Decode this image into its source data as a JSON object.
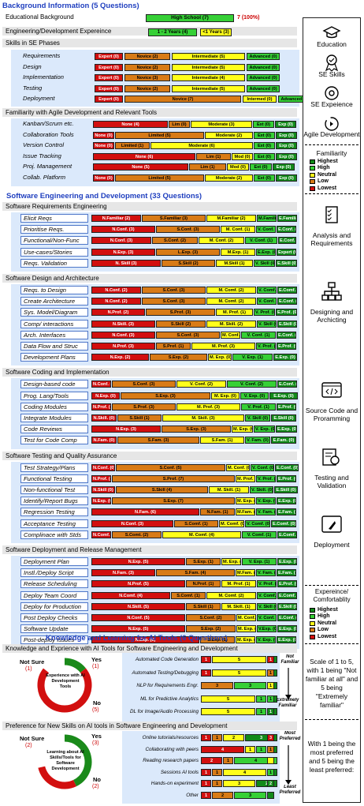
{
  "colors": {
    "highest": "#128a1a",
    "high": "#36d036",
    "neutral": "#ffff1a",
    "low": "#d87b17",
    "lowest": "#d20f0f",
    "title": "#1f3fbf"
  },
  "s1": {
    "title": "Background Information (5 Questions)",
    "edu": {
      "label": "Educational Background",
      "value": "High School (7)",
      "pct": "7 (100%)"
    },
    "exp": {
      "label": "Engineering/Development Expereince",
      "a": "1 - 2 Years (4)",
      "b": "<1 Years (3)"
    },
    "skills_title": "Skills in SE Phases",
    "skills": [
      {
        "l": "Requirements",
        "b": [
          "Expert (0)",
          "Novice (2)",
          "Intermediate (5)",
          "Advanced (0)"
        ]
      },
      {
        "l": "Design",
        "b": [
          "Expert (0)",
          "Novice (2)",
          "Intermediate (5)",
          "Advanced (0)"
        ]
      },
      {
        "l": "Implementation",
        "b": [
          "Expert (0)",
          "Novice (3)",
          "Intermediate (4)",
          "Advanced (0)"
        ]
      },
      {
        "l": "Testing",
        "b": [
          "Expert (0)",
          "Novice (2)",
          "Intermediate (5)",
          "Advanced (0)"
        ]
      },
      {
        "l": "Deployment",
        "b": [
          "Expert (0)",
          "Novice (7)",
          "Intermed (0)",
          "Advanced (0)"
        ]
      }
    ],
    "fam_title": "Familiarity with Agile Development and Relevant Tools",
    "fam": [
      {
        "l": "Kanban/Scrum etc.",
        "b": [
          "None (4)",
          "Lim (0)",
          "Moderate (3)",
          "Ext (0)",
          "Exp (0)"
        ]
      },
      {
        "l": "Collaboration Tools",
        "b": [
          "None (0)",
          "Limited (5)",
          "Moderate (2)",
          "Ext (0)",
          "Exp (0)"
        ]
      },
      {
        "l": "Version Control",
        "b": [
          "None (0)",
          "Limited (1)",
          "Moderate (6)",
          "Ext (0)",
          "Exp (0)"
        ]
      },
      {
        "l": "Issue Tracking",
        "b": [
          "None (6)",
          "Lim (1)",
          "Mod (0)",
          "Ext (0)",
          "Exp (0)"
        ]
      },
      {
        "l": "Proj. Management",
        "b": [
          "None (5)",
          "Lim (1)",
          "Mod (0)",
          "Ext (0)",
          "Exp (0)"
        ]
      },
      {
        "l": "Collab. Platform",
        "b": [
          "None (0)",
          "Limited (5)",
          "Moderate (2)",
          "Ext (0)",
          "Exp (0)"
        ]
      }
    ]
  },
  "s2": {
    "title": "Software Engineering and Development (33 Questions)",
    "groups": [
      {
        "title": "Software Requirements Engineering",
        "rows": [
          {
            "l": "Elicit Reqs",
            "b": [
              "N.Familiar (2)",
              "S.Familiar (3)",
              "M.Familiar (2)",
              "M.Familiar (0)",
              "E.Familiar (0)"
            ]
          },
          {
            "l": "Prioritise Reqs.",
            "b": [
              "N.Conf. (3)",
              "S.Conf. (3)",
              "M. Conf. (1)",
              "V. Conf. (0)",
              "E.Conf. (0)"
            ]
          },
          {
            "l": "Functional/Non-Func",
            "b": [
              "N.Conf. (3)",
              "S.Conf. (2)",
              "M. Conf. (2)",
              "V. Conf. (1)",
              "E.Conf. (0)"
            ]
          },
          {
            "l": "Use-cases/Stories",
            "b": [
              "N.Exp. (3)",
              "L.Exp. (3)",
              "M.Exp. (1)",
              "E.Exp. (0)",
              "Expert (0)"
            ]
          },
          {
            "l": "Reqs. Validation",
            "b": [
              "N. Skill (3)",
              "S.Skill (2)",
              "M.Skill (1)",
              "V. Skill (0)",
              "E.Skill (0)"
            ]
          }
        ]
      },
      {
        "title": "Software Design and Architecture",
        "rows": [
          {
            "l": "Reqs. to Design",
            "b": [
              "N.Conf. (2)",
              "S.Conf. (3)",
              "M. Comf. (2)",
              "V. Comf. (0)",
              "E.Comf. (0)"
            ]
          },
          {
            "l": "Create Architecture",
            "b": [
              "N.Conf. (2)",
              "S.Conf. (3)",
              "M. Comf. (2)",
              "V. Conf. (0)",
              "E.Conf. (0)"
            ]
          },
          {
            "l": "Sys. Model/Diagram",
            "b": [
              "N.Prof. (2)",
              "S.Prof. (3)",
              "M. Prof. (1)",
              "V. Prof. (0)",
              "E.Prof. (0)"
            ]
          },
          {
            "l": "Comp/ interactions",
            "b": [
              "N.Skill. (3)",
              "S.Skill (2)",
              "M. Skill. (2)",
              "V. Skill (0)",
              "E.Skill (0)"
            ]
          },
          {
            "l": "Arch. Interfaces",
            "b": [
              "N.Conf. (3)",
              "S.Conf. (3)",
              "M. Conf. (0)",
              "V. Conf. (1)",
              "E.Conf. (0)"
            ]
          },
          {
            "l": "Data Flow and Struc",
            "b": [
              "N.Prof. (3)",
              "S.Prof. (1)",
              "M. Prof. (3)",
              "V. Prof. (0)",
              "E.Prof. (0)"
            ]
          },
          {
            "l": "Development Plans",
            "b": [
              "N.Exp. (2)",
              "S.Exp. (2)",
              "M. Exp. (0)",
              "V. Exp. (1)",
              "E.Exp. (0)"
            ]
          }
        ]
      },
      {
        "title": "Software Coding and Implementation",
        "rows": [
          {
            "l": "Design-based code",
            "b": [
              "N.Conf. (0)",
              "S.Conf. (3)",
              "V. Conf. (2)",
              "V. Conf. (2)",
              "E.Conf. (0)"
            ]
          },
          {
            "l": "Prog. Lang/Tools",
            "b": [
              "N.Exp. (0)",
              "S.Exp. (3)",
              "M. Exp. (0)",
              "V. Exp. (0)",
              "E.Exp. (0)"
            ]
          },
          {
            "l": "Coding Modules",
            "b": [
              "N.Prof. (0)",
              "S.Prof. (3)",
              "M. Prof. (3)",
              "V. Prof. (1)",
              "E.Prof. (0)"
            ]
          },
          {
            "l": "Integrate Modules",
            "b": [
              "N.Skill. (0)",
              "S.Skill (1)",
              "M. Skill. (3)",
              "V. Skill (0)",
              "E.Skill (0)"
            ]
          },
          {
            "l": "Code Reviews",
            "b": [
              "N.Exp. (3)",
              "S.Exp. (3)",
              "M. Exp. (0)",
              "V. Exp. (0)",
              "E.Exp. (0)"
            ]
          },
          {
            "l": "Test for Code Comp",
            "b": [
              "N.Fam. (0)",
              "S.Fam. (3)",
              "S.Fam. (1)",
              "V. Fam. (0)",
              "E.Fam. (0)"
            ]
          }
        ]
      },
      {
        "title": "Software Testing and Quality Assurance",
        "rows": [
          {
            "l": "Test Strategy/Plans",
            "b": [
              "N.Conf. (0)",
              "S.Conf. (5)",
              "M. Conf. (0)",
              "V. Conf. (0)",
              "E.Conf. (0)"
            ]
          },
          {
            "l": "Functional Testing",
            "b": [
              "N.Prof. (0)",
              "S.Prof. (7)",
              "M. Prof. (0)",
              "V. Prof. (0)",
              "E.Prof. (0)"
            ]
          },
          {
            "l": "Non-functional Test",
            "b": [
              "N.Skill (0)",
              "S.Skill (4)",
              "M. Skill. (1)",
              "V. Skill. (0)",
              "E.Skill (0)"
            ]
          },
          {
            "l": "Identify/Report Bugs",
            "b": [
              "N.Exp. (0)",
              "S.Exp. (7)",
              "M. Exp. (0)",
              "V. Exp. (0)",
              "E.Exp. (0)"
            ]
          },
          {
            "l": "Regression Testing",
            "b": [
              "N.Fam. (6)",
              "N.Fam. (1)",
              "M.Fam. (0)",
              "V. Fam. (0)",
              "E.Fam. (0)"
            ]
          },
          {
            "l": "Acceptance Testing",
            "b": [
              "N.Conf. (3)",
              "S.Comf. (1)",
              "M. Comf. (0)",
              "V. Comf. (0)",
              "E.Comf. (0)"
            ]
          },
          {
            "l": "Complinace with Stds",
            "b": [
              "N.Comf. (0)",
              "S.Comt. (2)",
              "M. Comf. (4)",
              "V. Comf. (1)",
              "E.Comf. (0)"
            ]
          }
        ]
      },
      {
        "title": "Software Deployment and Release Management",
        "rows": [
          {
            "l": "Deployment Plan",
            "b": [
              "N.Exp. (5)",
              "S.Exp. (1)",
              "M. Exp. (0)",
              "V. Exp. (1)",
              "E.Exp. (0)"
            ]
          },
          {
            "l": "Instl./Deploy Script",
            "b": [
              "N.Fam. (3)",
              "S.Fam. (4)",
              "M.Fam. (0)",
              "V. Fam. (0)",
              "E.Fam. (0)"
            ]
          },
          {
            "l": "Release Scheduling",
            "b": [
              "N.Prof. (5)",
              "N.Prof. (1)",
              "M. Prof. (1)",
              "V. Prof. (0)",
              "E.Prof. (0)"
            ]
          },
          {
            "l": "Deploy Team Coord",
            "b": [
              "N.Comf. (4)",
              "S.Comf. (1)",
              "M. Comf. (2)",
              "V. Comf. (0)",
              "E.Comf. (0)"
            ]
          },
          {
            "l": "Deploy for Production",
            "b": [
              "N.Skill. (5)",
              "S.Skill (1)",
              "M. Skill. (1)",
              "V. Skill (0)",
              "E.Skill (0)"
            ]
          },
          {
            "l": "Post Deploy Checks",
            "b": [
              "N.Conf. (5)",
              "S.Conf. (2)",
              "M. Conf. (0)",
              "V. Conf. (0)",
              "E.Conf. (0)"
            ]
          },
          {
            "l": "Software Update",
            "b": [
              "N.Exp. (5)",
              "S.Exp. (2)",
              "M. Exp. (0)",
              "V.Exp. (0)",
              "E.Exp. (0)"
            ]
          },
          {
            "l": "Post-deploy Issues",
            "b": [
              "N.Exp. (6)",
              "S.Exp. (1)",
              "M. Exp. (0)",
              "V. Exp. (0)",
              "E.Exp. (0)"
            ]
          }
        ]
      }
    ]
  },
  "s3": {
    "title": "Knowledge and Learning for AI Tools (6 Questions)",
    "k_title": "Knowledge and Exprience with AI Tools for Software Engineering and Development",
    "k_donut": {
      "center": "Experience with AI Development Tools",
      "notsure_label": "Not Sure",
      "notsure_val": "(1)",
      "yes_label": "Yes",
      "yes_val": "(1)",
      "no_label": "No",
      "no_val": "(5)"
    },
    "k_items": [
      {
        "l": "Automated Code Generation",
        "v": [
          "1",
          "",
          "5",
          "",
          "1"
        ]
      },
      {
        "l": "Automated Testing/Debugging",
        "v": [
          "1",
          "",
          "5",
          "",
          "1"
        ]
      },
      {
        "l": "NLP for Requirements Engr.",
        "v": [
          "",
          "3",
          "",
          "3",
          "1"
        ]
      },
      {
        "l": "ML for Predictive Analytics",
        "v": [
          "",
          "",
          "5",
          "1",
          "1"
        ]
      },
      {
        "l": "DL for Image/Audio Processing",
        "v": [
          "",
          "",
          "5",
          "1",
          "1"
        ]
      }
    ],
    "k_top": "Not Familiar",
    "k_bottom": "Extremely Familiar",
    "p_title": "Preference for New Skills on AI tools in Software Engineering and Development",
    "p_donut": {
      "center": "Learning about AI Skills/Tools for Software Development",
      "notsure_label": "Not Sure",
      "notsure_val": "(2)",
      "yes_label": "Yes",
      "yes_val": "(3)",
      "no_label": "No",
      "no_val": "(2)"
    },
    "p_items": [
      {
        "l": "Online tutorials/resources",
        "v": [
          "1",
          "1",
          "2",
          "",
          "3"
        ]
      },
      {
        "l": "Collaborating with peers",
        "v": [
          "4",
          "",
          "1",
          "1",
          "1"
        ]
      },
      {
        "l": "Reading research papers",
        "v": [
          "2",
          "1",
          "",
          "4",
          ""
        ]
      },
      {
        "l": "Sessions AI tools",
        "v": [
          "1",
          "1",
          "4",
          "",
          "1"
        ]
      },
      {
        "l": "Hands-on experiment",
        "v": [
          "1",
          "1",
          "3",
          "",
          "2"
        ]
      },
      {
        "l": "Other",
        "v": [
          "1",
          "2",
          "",
          "3",
          ""
        ]
      }
    ],
    "p_top": "Most Preferred",
    "p_bottom": "Least Preferred"
  },
  "right": {
    "icons": [
      {
        "label": "Education"
      },
      {
        "label": "SE Skills"
      },
      {
        "label": "SE Expeience"
      },
      {
        "label": "Agile Development"
      }
    ],
    "fam_legend": {
      "title": "Familiarity",
      "items": [
        "Highest",
        "High",
        "Neutral",
        "Low",
        "Lowest"
      ]
    },
    "icons2": [
      {
        "label": "Analysis and Requirements"
      },
      {
        "label": "Designing and Archicting"
      },
      {
        "label": "Source Code and Proramming"
      },
      {
        "label": "Testing and Validation"
      },
      {
        "label": "Deployment"
      }
    ],
    "comf_legend": {
      "title": "Expereince/ Comfortablity",
      "items": [
        "Highest",
        "High",
        "Neutral",
        "Low",
        "Lowest"
      ]
    },
    "scale_note": "Scale of 1 to 5, with 1 being \"Not familiar at all\" and 5 being \"Extremely familiar\"",
    "pref_note": "With 1 being the most preferred and 5 being the least preferred:"
  }
}
